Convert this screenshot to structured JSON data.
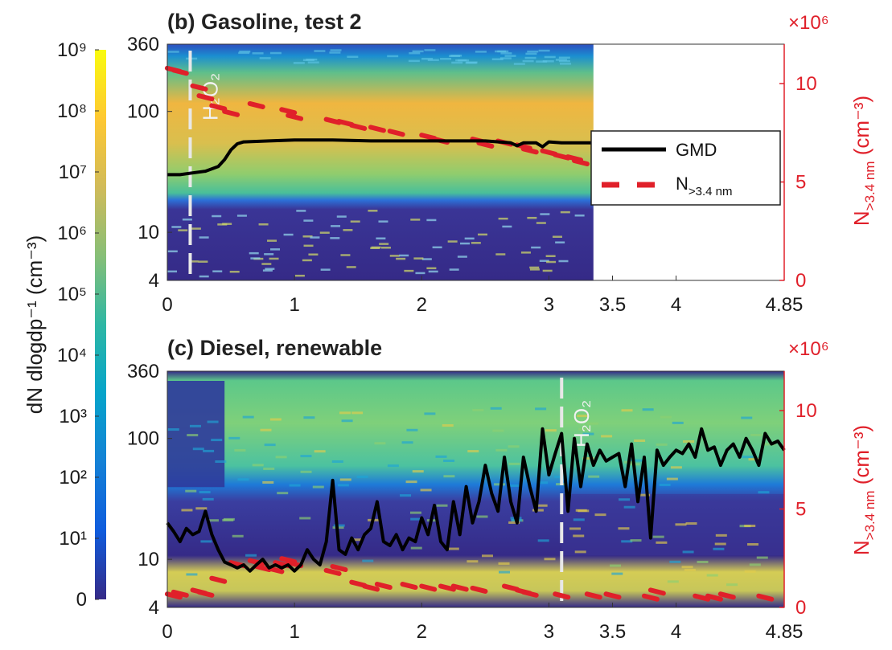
{
  "colorbar": {
    "label": "dN dlogdp⁻¹ (cm⁻³)",
    "ticks": [
      {
        "value": 9,
        "text": "10⁹"
      },
      {
        "value": 8,
        "text": "10⁸"
      },
      {
        "value": 7,
        "text": "10⁷"
      },
      {
        "value": 6,
        "text": "10⁶"
      },
      {
        "value": 5,
        "text": "10⁵"
      },
      {
        "value": 4,
        "text": "10⁴"
      },
      {
        "value": 3,
        "text": "10³"
      },
      {
        "value": 2,
        "text": "10²"
      },
      {
        "value": 1,
        "text": "10¹"
      },
      {
        "value": 0,
        "text": "0"
      }
    ],
    "colormap": [
      "#352a87",
      "#0f5cdd",
      "#1481d6",
      "#06a4ca",
      "#2eb7a4",
      "#87bf77",
      "#d1bb59",
      "#fec832",
      "#f9fb0e"
    ]
  },
  "legend": {
    "gmd_label": "GMD",
    "n_label_main": "N",
    "n_label_sub": ">3.4 nm"
  },
  "chart_data": [
    {
      "type": "heatmap",
      "title": "(b) Gasoline, test 2",
      "x_ticks": [
        "0",
        "1",
        "2",
        "3",
        "3.5",
        "4",
        "4.85"
      ],
      "x_tick_values": [
        0,
        1,
        2,
        3,
        3.5,
        4,
        4.85
      ],
      "xlim": [
        0,
        4.85
      ],
      "data_end_x": 3.35,
      "y_left_ticks": [
        "4",
        "10",
        "100",
        "360"
      ],
      "y_left_tick_values": [
        4,
        10,
        100,
        360
      ],
      "ylim_left": [
        4,
        360
      ],
      "y_left_scale": "log",
      "y_right_ticks": [
        "0",
        "5",
        "10"
      ],
      "y_right_tick_values": [
        0,
        5,
        10
      ],
      "ylim_right": [
        0,
        12
      ],
      "y_right_multiplier": "×10⁶",
      "y_right_label_main": "N",
      "y_right_label_sub": ">3.4 nm",
      "y_right_label_unit": " (cm⁻³)",
      "marker_x": 0.18,
      "marker_label": "H₂O₂",
      "gmd": {
        "x": [
          0,
          0.1,
          0.2,
          0.3,
          0.4,
          0.45,
          0.5,
          0.55,
          0.6,
          0.8,
          1.0,
          1.3,
          1.6,
          2.0,
          2.5,
          2.7,
          2.75,
          2.8,
          2.9,
          2.95,
          3.0,
          3.1,
          3.35
        ],
        "y": [
          30,
          30,
          31,
          32,
          35,
          40,
          48,
          54,
          56,
          57,
          58,
          58,
          57,
          57,
          57,
          55,
          52,
          55,
          55,
          51,
          56,
          55,
          55
        ]
      },
      "n_points": {
        "x": [
          0.05,
          0.1,
          0.25,
          0.3,
          0.4,
          0.5,
          0.7,
          0.95,
          1.0,
          1.3,
          1.4,
          1.5,
          1.65,
          1.8,
          2.05,
          2.15,
          2.45,
          2.5,
          2.65,
          2.8,
          2.85,
          3.0,
          3.1,
          3.2,
          3.25
        ],
        "y": [
          10.7,
          10.6,
          9.8,
          9.3,
          8.8,
          8.5,
          8.9,
          8.6,
          8.3,
          8.1,
          8.0,
          7.8,
          7.7,
          7.5,
          7.3,
          7.1,
          7.1,
          6.9,
          7.0,
          6.8,
          6.6,
          6.5,
          6.3,
          6.2,
          6.0
        ]
      }
    },
    {
      "type": "heatmap",
      "title": "(c) Diesel, renewable",
      "x_ticks": [
        "0",
        "1",
        "2",
        "3",
        "3.5",
        "4",
        "4.85"
      ],
      "x_tick_values": [
        0,
        1,
        2,
        3,
        3.5,
        4,
        4.85
      ],
      "xlim": [
        0,
        4.85
      ],
      "data_end_x": 4.85,
      "y_left_ticks": [
        "4",
        "10",
        "100",
        "360"
      ],
      "y_left_tick_values": [
        4,
        10,
        100,
        360
      ],
      "ylim_left": [
        4,
        360
      ],
      "y_left_scale": "log",
      "y_right_ticks": [
        "0",
        "5",
        "10"
      ],
      "y_right_tick_values": [
        0,
        5,
        10
      ],
      "ylim_right": [
        0,
        12
      ],
      "y_right_multiplier": "×10⁶",
      "y_right_label_main": "N",
      "y_right_label_sub": ">3.4 nm",
      "y_right_label_unit": " (cm⁻³)",
      "marker_x": 3.1,
      "marker_label": "H₂O₂",
      "gmd": {
        "x": [
          0,
          0.05,
          0.1,
          0.15,
          0.2,
          0.25,
          0.3,
          0.35,
          0.4,
          0.45,
          0.5,
          0.55,
          0.6,
          0.65,
          0.7,
          0.75,
          0.8,
          0.85,
          0.9,
          0.95,
          1.0,
          1.05,
          1.1,
          1.15,
          1.2,
          1.25,
          1.3,
          1.35,
          1.4,
          1.45,
          1.5,
          1.55,
          1.6,
          1.65,
          1.7,
          1.75,
          1.8,
          1.85,
          1.9,
          1.95,
          2.0,
          2.05,
          2.1,
          2.15,
          2.2,
          2.25,
          2.3,
          2.35,
          2.4,
          2.45,
          2.5,
          2.55,
          2.6,
          2.65,
          2.7,
          2.75,
          2.8,
          2.85,
          2.9,
          2.95,
          3.0,
          3.05,
          3.1,
          3.15,
          3.2,
          3.25,
          3.3,
          3.35,
          3.4,
          3.45,
          3.5,
          3.55,
          3.6,
          3.65,
          3.7,
          3.75,
          3.8,
          3.85,
          3.9,
          3.95,
          4.0,
          4.05,
          4.1,
          4.15,
          4.2,
          4.25,
          4.3,
          4.35,
          4.4,
          4.45,
          4.5,
          4.55,
          4.6,
          4.65,
          4.7,
          4.75,
          4.8,
          4.85
        ],
        "y": [
          20,
          17,
          14,
          18,
          16,
          17,
          25,
          16,
          12,
          9.5,
          9,
          8.5,
          9,
          8,
          9,
          10,
          8.5,
          9,
          8.5,
          9,
          8,
          9,
          12,
          10,
          9,
          14,
          45,
          12,
          11,
          15,
          12,
          16,
          18,
          30,
          14,
          13,
          16,
          12,
          15,
          14,
          22,
          16,
          28,
          14,
          12,
          30,
          16,
          40,
          20,
          30,
          60,
          35,
          25,
          70,
          30,
          20,
          70,
          40,
          25,
          120,
          50,
          75,
          110,
          25,
          100,
          40,
          90,
          60,
          80,
          65,
          70,
          75,
          40,
          90,
          30,
          70,
          15,
          80,
          60,
          70,
          80,
          75,
          90,
          70,
          120,
          80,
          85,
          60,
          80,
          90,
          70,
          100,
          80,
          60,
          110,
          90,
          95,
          80
        ]
      },
      "n_points": {
        "x": [
          0.05,
          0.1,
          0.25,
          0.3,
          0.4,
          0.55,
          0.7,
          0.75,
          0.85,
          0.9,
          0.95,
          1.0,
          1.3,
          1.35,
          1.5,
          1.6,
          1.7,
          1.9,
          2.05,
          2.2,
          2.3,
          2.45,
          2.7,
          2.8,
          2.85,
          3.1,
          3.35,
          3.5,
          3.8,
          3.85,
          4.2,
          4.3,
          4.4,
          4.7
        ],
        "y": [
          0.6,
          0.7,
          0.8,
          0.7,
          1.4,
          2.2,
          2.3,
          2.0,
          1.9,
          2.2,
          2.4,
          2.2,
          1.8,
          2.0,
          1.2,
          1.0,
          1.1,
          1.1,
          1.0,
          1.0,
          1.0,
          0.9,
          1.0,
          0.8,
          0.7,
          0.6,
          0.6,
          0.6,
          0.5,
          0.8,
          0.5,
          0.5,
          0.6,
          0.5
        ]
      }
    }
  ]
}
